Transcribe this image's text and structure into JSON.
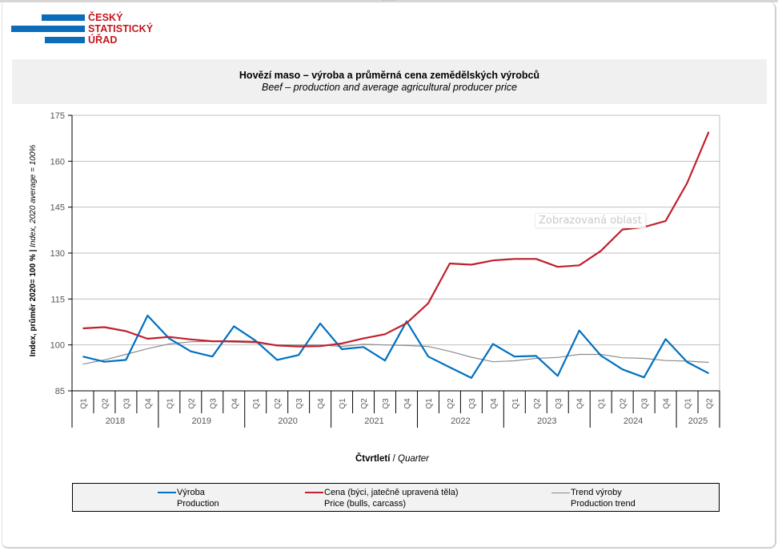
{
  "logo": {
    "lines": [
      "ČESKÝ",
      "STATISTICKÝ",
      "ÚŘAD"
    ],
    "colors": {
      "bars": "#0b6cb9",
      "text": "#c4161c"
    }
  },
  "header": {
    "title_cz": "Hovězí maso – výroba a průměrná cena zemědělských výrobců",
    "title_en": "Beef – production and average agricultural producer price"
  },
  "overlay": {
    "tooltip": "Zobrazovaná oblast"
  },
  "chart_data": {
    "type": "line",
    "title": "Hovězí maso – výroba a průměrná cena zemědělských výrobců",
    "subtitle": "Beef – production and average agricultural producer price",
    "ylabel_cz": "Index, průměr 2020= 100 %",
    "ylabel_sep": " | ",
    "ylabel_en": "Index, 2020 average = 100%",
    "xlabel_cz": "Čtvrtletí",
    "xlabel_sep": " / ",
    "xlabel_en": "Quarter",
    "ylim": [
      85,
      175
    ],
    "yticks": [
      85,
      100,
      115,
      130,
      145,
      160,
      175
    ],
    "grid": true,
    "legend_position": "bottom",
    "years": [
      {
        "label": "2018",
        "quarters": 4
      },
      {
        "label": "2019",
        "quarters": 4
      },
      {
        "label": "2020",
        "quarters": 4
      },
      {
        "label": "2021",
        "quarters": 4
      },
      {
        "label": "2022",
        "quarters": 4
      },
      {
        "label": "2023",
        "quarters": 4
      },
      {
        "label": "2024",
        "quarters": 4
      },
      {
        "label": "2025",
        "quarters": 2
      }
    ],
    "categories": [
      "Q1",
      "Q2",
      "Q3",
      "Q4",
      "Q1",
      "Q2",
      "Q3",
      "Q4",
      "Q1",
      "Q2",
      "Q3",
      "Q4",
      "Q1",
      "Q2",
      "Q3",
      "Q4",
      "Q1",
      "Q2",
      "Q3",
      "Q4",
      "Q1",
      "Q2",
      "Q3",
      "Q4",
      "Q1",
      "Q2",
      "Q3",
      "Q4",
      "Q1",
      "Q2"
    ],
    "series": [
      {
        "name": "Výroba",
        "name_en": "Production",
        "color": "#0070c0",
        "width": 2.2,
        "values": [
          96.2,
          94.5,
          95.1,
          109.6,
          102.1,
          97.9,
          96.2,
          106.1,
          101.4,
          95.1,
          96.7,
          107.0,
          98.6,
          99.3,
          94.9,
          107.7,
          96.2,
          92.7,
          89.2,
          100.3,
          96.2,
          96.4,
          89.9,
          104.7,
          96.5,
          92.0,
          89.4,
          101.9,
          94.4,
          90.7
        ]
      },
      {
        "name": "Cena (býci, jatečně upravená těla)",
        "name_en": "Price (bulls, carcass)",
        "color": "#c0202b",
        "width": 2.2,
        "values": [
          105.4,
          105.8,
          104.5,
          102.0,
          102.6,
          101.8,
          101.2,
          101.2,
          101.0,
          99.8,
          99.5,
          99.6,
          100.5,
          102.1,
          103.5,
          107.1,
          113.6,
          126.6,
          126.2,
          127.6,
          128.1,
          128.1,
          125.5,
          126.0,
          130.7,
          137.7,
          138.5,
          140.5,
          152.9,
          169.6
        ]
      },
      {
        "name": "Trend výroby",
        "name_en": "Production trend",
        "color": "#8c8c8c",
        "width": 1.2,
        "values": [
          93.7,
          95.1,
          96.9,
          98.8,
          100.3,
          101.0,
          101.2,
          100.9,
          100.7,
          100.0,
          100.0,
          100.0,
          99.5,
          100.2,
          100.0,
          99.8,
          99.5,
          97.9,
          96.0,
          94.5,
          94.8,
          95.6,
          95.9,
          96.9,
          96.9,
          95.8,
          95.6,
          94.9,
          94.7,
          94.3
        ]
      }
    ]
  }
}
